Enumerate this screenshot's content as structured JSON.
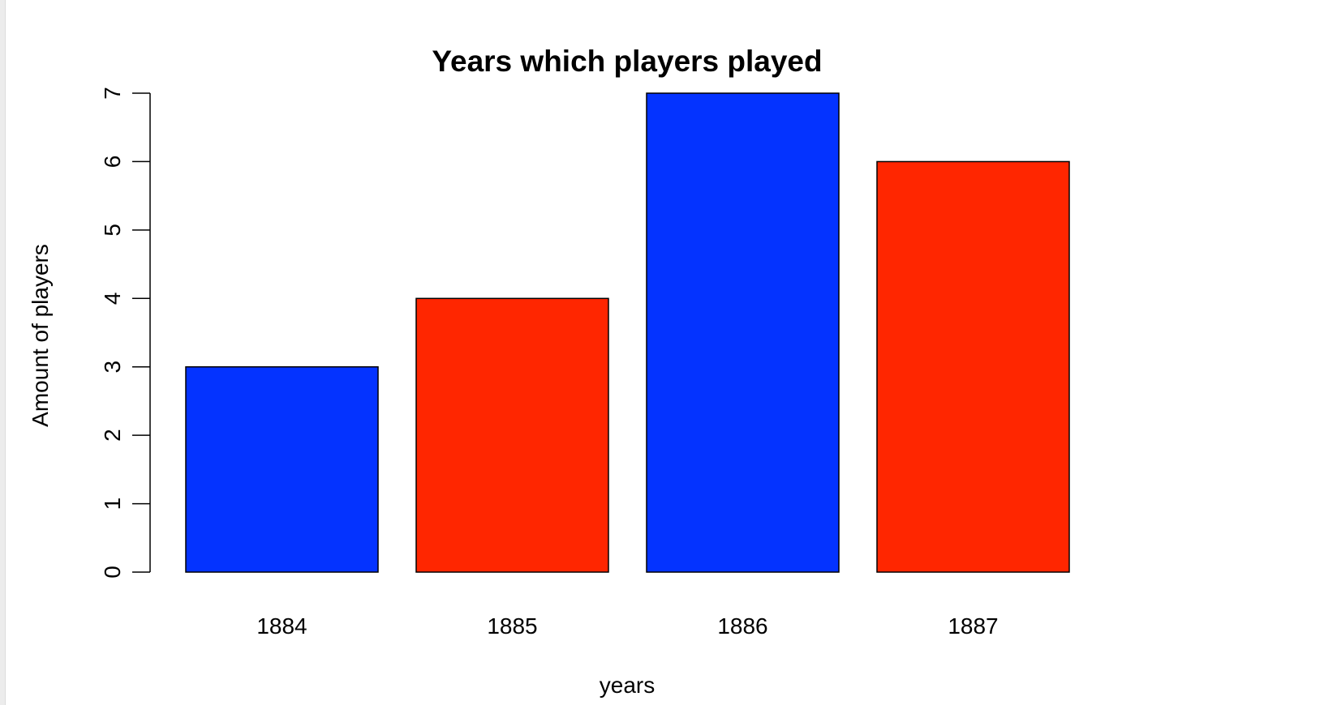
{
  "chart_data": {
    "type": "bar",
    "title": "Years which players played",
    "xlabel": "years",
    "ylabel": "Amount of players",
    "categories": [
      "1884",
      "1885",
      "1886",
      "1887"
    ],
    "values": [
      3,
      4,
      7,
      6
    ],
    "bar_colors": [
      "#0433ff",
      "#ff2600",
      "#0433ff",
      "#ff2600"
    ],
    "ylim": [
      0,
      7
    ],
    "yticks": [
      0,
      1,
      2,
      3,
      4,
      5,
      6,
      7
    ],
    "grid": false,
    "legend": "none"
  }
}
